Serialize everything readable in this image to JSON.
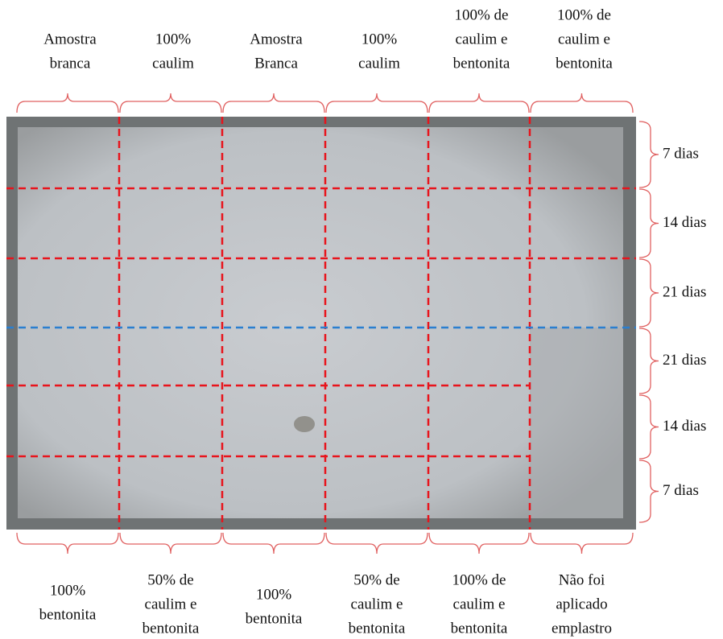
{
  "top_labels": [
    [
      "Amostra",
      "branca"
    ],
    [
      "100%",
      "caulim"
    ],
    [
      "Amostra",
      "Branca"
    ],
    [
      "100%",
      "caulim"
    ],
    [
      "100% de",
      "caulim e",
      "bentonita"
    ],
    [
      "100% de",
      "caulim e",
      "bentonita"
    ]
  ],
  "bottom_labels": [
    [
      "100%",
      "bentonita"
    ],
    [
      "50% de",
      "caulim e",
      "bentonita"
    ],
    [
      "100%",
      "bentonita"
    ],
    [
      "50% de",
      "caulim e",
      "bentonita"
    ],
    [
      "100% de",
      "caulim e",
      "bentonita"
    ],
    [
      "Não foi",
      "aplicado",
      "emplastro"
    ]
  ],
  "right_labels": [
    "7 dias",
    "14 dias",
    "21 dias",
    "21 dias",
    "14 dias",
    "7 dias"
  ]
}
